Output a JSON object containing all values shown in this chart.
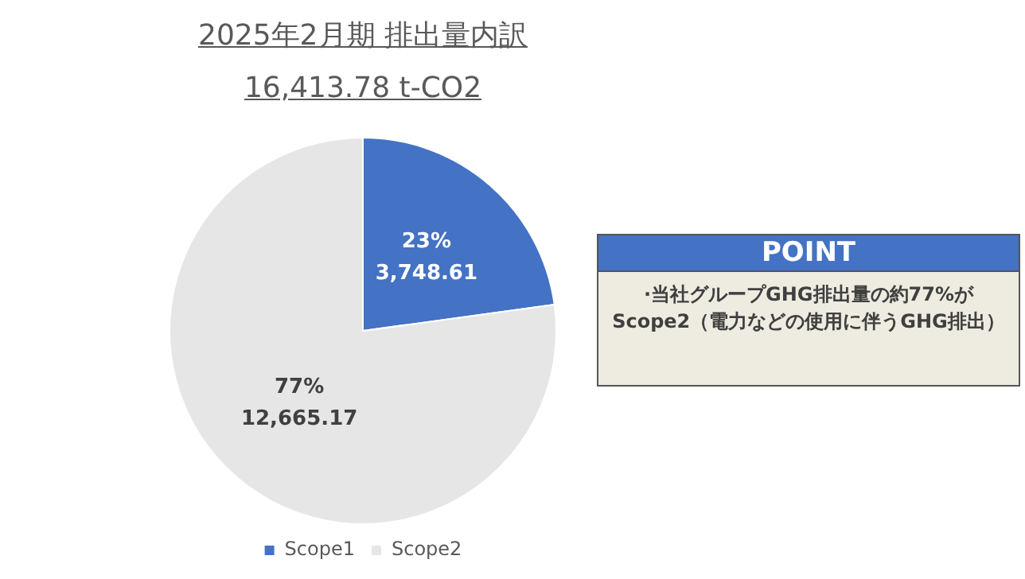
{
  "chart_data": {
    "type": "pie",
    "title": "2025年2月期  排出量内訳",
    "subtitle": "16,413.78 t-CO2",
    "categories": [
      "Scope1",
      "Scope2"
    ],
    "values": [
      3748.61,
      12665.17
    ],
    "colors": [
      "#4472c4",
      "#e7e6e6"
    ],
    "value_labels": [
      "23%\n3,748.61",
      "77%\n12,665.17"
    ],
    "legend": "bottom",
    "annotations": [
      "POINT",
      "·当社グループGHG排出量の約77%がScope2（電力などの使用に伴うGHG排出）"
    ]
  }
}
